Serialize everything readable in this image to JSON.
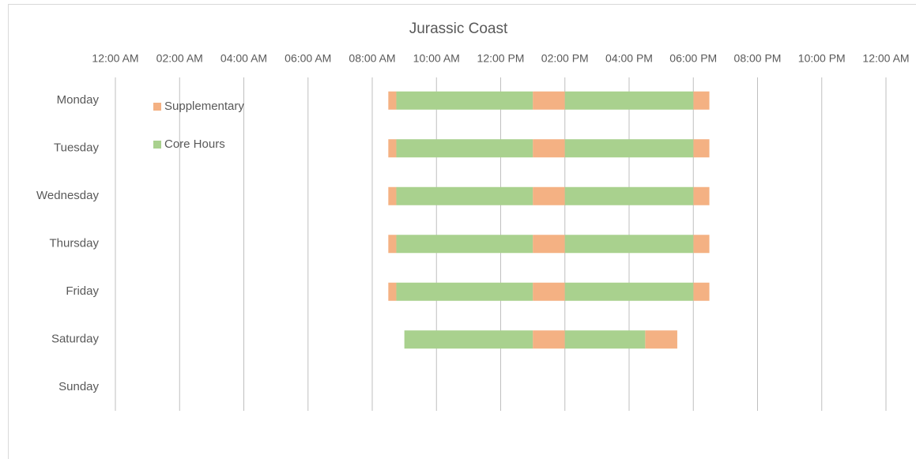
{
  "chart_data": {
    "type": "gantt",
    "title": "Jurassic Coast",
    "categories": [
      "Monday",
      "Tuesday",
      "Wednesday",
      "Thursday",
      "Friday",
      "Saturday",
      "Sunday"
    ],
    "series": [
      {
        "name": "Supplementary",
        "color": "#f4b183",
        "segments": [
          [
            [
              8.5,
              8.75
            ],
            [
              13,
              14
            ],
            [
              18,
              18.5
            ]
          ],
          [
            [
              8.5,
              8.75
            ],
            [
              13,
              14
            ],
            [
              18,
              18.5
            ]
          ],
          [
            [
              8.5,
              8.75
            ],
            [
              13,
              14
            ],
            [
              18,
              18.5
            ]
          ],
          [
            [
              8.5,
              8.75
            ],
            [
              13,
              14
            ],
            [
              18,
              18.5
            ]
          ],
          [
            [
              8.5,
              8.75
            ],
            [
              13,
              14
            ],
            [
              18,
              18.5
            ]
          ],
          [
            [
              13,
              14
            ],
            [
              16.5,
              17.5
            ]
          ],
          []
        ]
      },
      {
        "name": "Core Hours",
        "color": "#a9d18e",
        "segments": [
          [
            [
              8.75,
              13
            ],
            [
              14,
              18
            ]
          ],
          [
            [
              8.75,
              13
            ],
            [
              14,
              18
            ]
          ],
          [
            [
              8.75,
              13
            ],
            [
              14,
              18
            ]
          ],
          [
            [
              8.75,
              13
            ],
            [
              14,
              18
            ]
          ],
          [
            [
              8.75,
              13
            ],
            [
              14,
              18
            ]
          ],
          [
            [
              9,
              13
            ],
            [
              14,
              16.5
            ]
          ],
          []
        ]
      }
    ],
    "xlim": [
      0,
      24
    ],
    "xticks": [
      {
        "value": 0,
        "label": "12:00 AM"
      },
      {
        "value": 2,
        "label": "02:00 AM"
      },
      {
        "value": 4,
        "label": "04:00 AM"
      },
      {
        "value": 6,
        "label": "06:00 AM"
      },
      {
        "value": 8,
        "label": "08:00 AM"
      },
      {
        "value": 10,
        "label": "10:00 AM"
      },
      {
        "value": 12,
        "label": "12:00 PM"
      },
      {
        "value": 14,
        "label": "02:00 PM"
      },
      {
        "value": 16,
        "label": "04:00 PM"
      },
      {
        "value": 18,
        "label": "06:00 PM"
      },
      {
        "value": 20,
        "label": "08:00 PM"
      },
      {
        "value": 22,
        "label": "10:00 PM"
      },
      {
        "value": 24,
        "label": "12:00 AM"
      }
    ],
    "grid": true,
    "legend": "top-left"
  }
}
